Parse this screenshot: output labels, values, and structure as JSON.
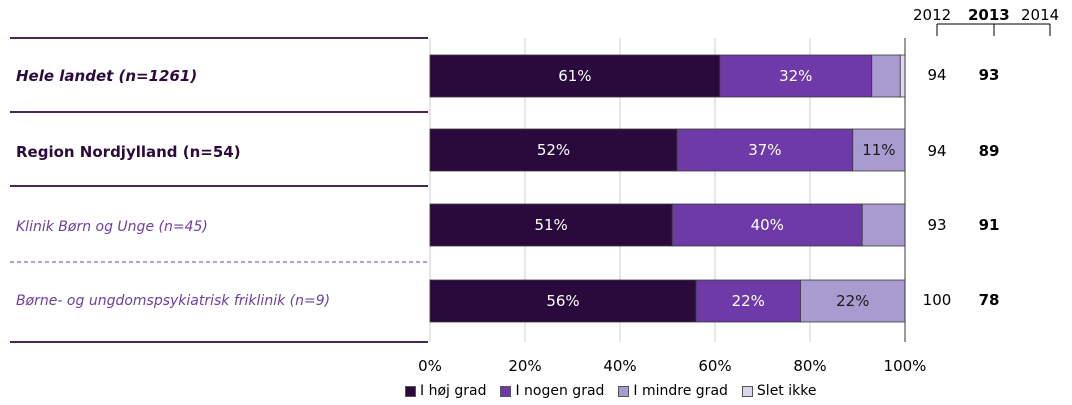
{
  "chart_data": {
    "type": "bar",
    "stacked": true,
    "orientation": "horizontal",
    "categories": [
      "Hele landet (n=1261)",
      "Region Nordjylland (n=54)",
      "Klinik Børn og Unge (n=45)",
      "Børne- og ungdomspsykiatrisk friklinik (n=9)"
    ],
    "series": [
      {
        "name": "I høj grad",
        "color": "#2a0a3d",
        "values": [
          61,
          52,
          51,
          56
        ],
        "labels": [
          "61%",
          "52%",
          "51%",
          "56%"
        ]
      },
      {
        "name": "I nogen grad",
        "color": "#6e3aa8",
        "values": [
          32,
          37,
          40,
          22
        ],
        "labels": [
          "32%",
          "37%",
          "40%",
          "22%"
        ]
      },
      {
        "name": "I mindre grad",
        "color": "#a99bcf",
        "values": [
          6,
          11,
          9,
          22
        ],
        "labels": [
          "",
          "11%",
          "",
          "22%"
        ]
      },
      {
        "name": "Slet ikke",
        "color": "#ddd6ee",
        "values": [
          1,
          0,
          0,
          0
        ],
        "labels": [
          "",
          "",
          "",
          ""
        ]
      }
    ],
    "xlim": [
      0,
      100
    ],
    "xticks": [
      "0%",
      "20%",
      "40%",
      "60%",
      "80%",
      "100%"
    ],
    "legend_position": "bottom",
    "years": [
      "2012",
      "2013",
      "2014"
    ],
    "year_values": {
      "2012": [
        "94",
        "94",
        "93",
        "100"
      ],
      "2013": [
        "93",
        "89",
        "91",
        "78"
      ],
      "2014": [
        "",
        "",
        "",
        ""
      ]
    }
  }
}
